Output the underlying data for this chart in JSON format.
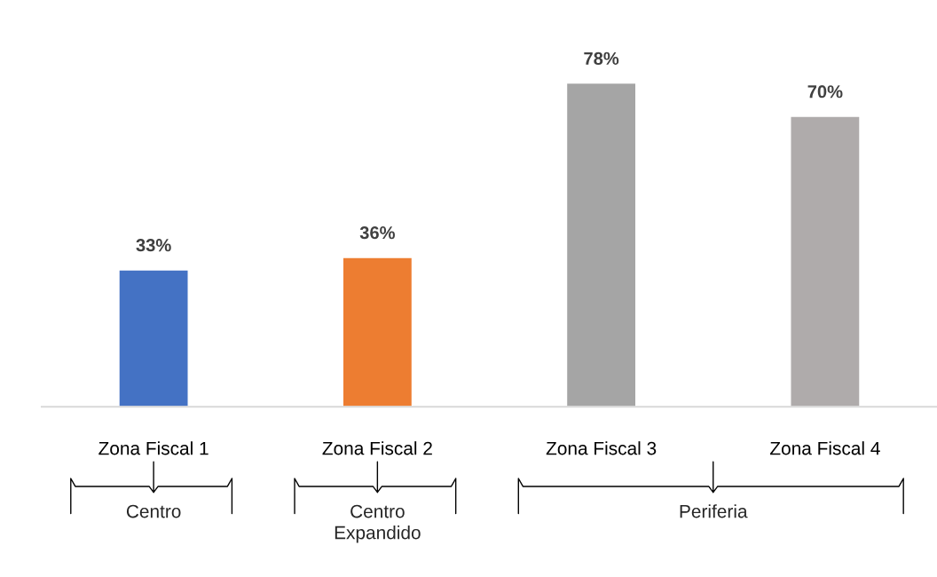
{
  "chart_data": {
    "type": "bar",
    "categories": [
      "Zona Fiscal 1",
      "Zona Fiscal 2",
      "Zona Fiscal 3",
      "Zona Fiscal 4"
    ],
    "values": [
      33,
      36,
      78,
      70
    ],
    "colors": [
      "#4472c4",
      "#ed7d31",
      "#a5a5a5",
      "#afabab"
    ],
    "value_labels": [
      "33%",
      "36%",
      "78%",
      "70%"
    ],
    "annotations": [
      "Centro",
      "Centro\nExpandido",
      "Periferia"
    ],
    "grid": false,
    "legend": false
  }
}
